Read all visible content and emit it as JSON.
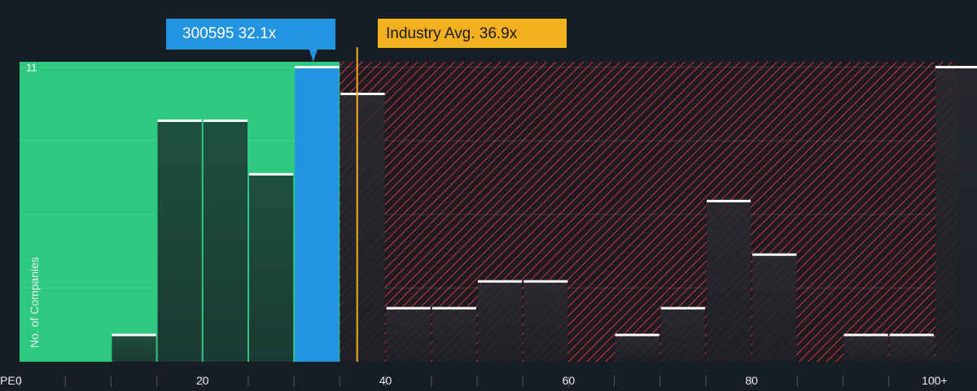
{
  "chart_data": {
    "type": "bar",
    "xlabel": "PE",
    "ylabel": "No. of Companies",
    "x_ticks": [
      "0",
      "20",
      "40",
      "60",
      "80",
      "100+"
    ],
    "x_tick_values": [
      0,
      20,
      40,
      60,
      80,
      100
    ],
    "xlim": [
      0,
      102.5
    ],
    "ylim": [
      0,
      11.2
    ],
    "y_tick_labels": [
      "11"
    ],
    "y_tick_values": [
      11
    ],
    "bin_width": 5,
    "bins": [
      {
        "x": 10,
        "value": 1
      },
      {
        "x": 15,
        "value": 9
      },
      {
        "x": 20,
        "value": 9
      },
      {
        "x": 25,
        "value": 7
      },
      {
        "x": 30,
        "value": 11,
        "highlight": true
      },
      {
        "x": 35,
        "value": 10
      },
      {
        "x": 40,
        "value": 2
      },
      {
        "x": 45,
        "value": 2
      },
      {
        "x": 50,
        "value": 3
      },
      {
        "x": 55,
        "value": 3
      },
      {
        "x": 65,
        "value": 1
      },
      {
        "x": 70,
        "value": 2
      },
      {
        "x": 75,
        "value": 6
      },
      {
        "x": 80,
        "value": 4
      },
      {
        "x": 90,
        "value": 1
      },
      {
        "x": 95,
        "value": 1
      },
      {
        "x": 100,
        "value": 11
      }
    ],
    "company": {
      "ticker": "300595",
      "pe": 32.1,
      "label": "300595 32.1x"
    },
    "industry_avg": {
      "pe": 36.9,
      "label": "Industry Avg. 36.9x"
    },
    "colors": {
      "background": "#171d24",
      "fair_zone": "#2dc97e",
      "company": "#2394df",
      "industry": "#f2b01e",
      "hatch": "#d33f48",
      "bar": "#1b4c3b",
      "cap": "#ffffff"
    }
  }
}
